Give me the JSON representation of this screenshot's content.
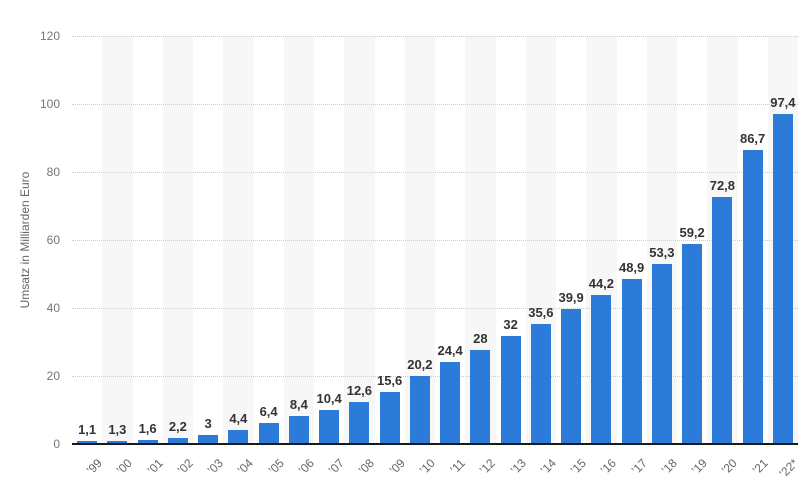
{
  "chart_data": {
    "type": "bar",
    "title": "",
    "xlabel": "",
    "ylabel": "Umsatz in Milliarden Euro",
    "ylim": [
      0,
      120
    ],
    "yticks": [
      0,
      20,
      40,
      60,
      80,
      100,
      120
    ],
    "grid": "horizontal dotted lines, light gray",
    "legend": "none",
    "banding": "light gray vertical band behind every second year column starting with '00",
    "categories": [
      "’99",
      "’00",
      "’01",
      "’02",
      "’03",
      "’04",
      "’05",
      "’06",
      "’07",
      "’08",
      "’09",
      "’10",
      "’11",
      "’12",
      "’13",
      "’14",
      "’15",
      "’16",
      "’17",
      "’18",
      "’19",
      "’20",
      "’21",
      "’22*"
    ],
    "values": [
      1.1,
      1.3,
      1.6,
      2.2,
      3,
      4.4,
      6.4,
      8.4,
      10.4,
      12.6,
      15.6,
      20.2,
      24.4,
      28,
      32,
      35.6,
      39.9,
      44.2,
      48.9,
      53.3,
      59.2,
      72.8,
      86.7,
      97.4
    ],
    "value_labels": [
      "1,1",
      "1,3",
      "1,6",
      "2,2",
      "3",
      "4,4",
      "6,4",
      "8,4",
      "10,4",
      "12,6",
      "15,6",
      "20,2",
      "24,4",
      "28",
      "32",
      "35,6",
      "39,9",
      "44,2",
      "48,9",
      "53,3",
      "59,2",
      "72,8",
      "86,7",
      "97,4"
    ]
  },
  "colors": {
    "bar": "#2d7bd9",
    "band": "#f7f7f7",
    "grid": "#cccccc",
    "baseline": "#1a1a1a",
    "axis_text": "#757575",
    "value_text": "#333333"
  }
}
